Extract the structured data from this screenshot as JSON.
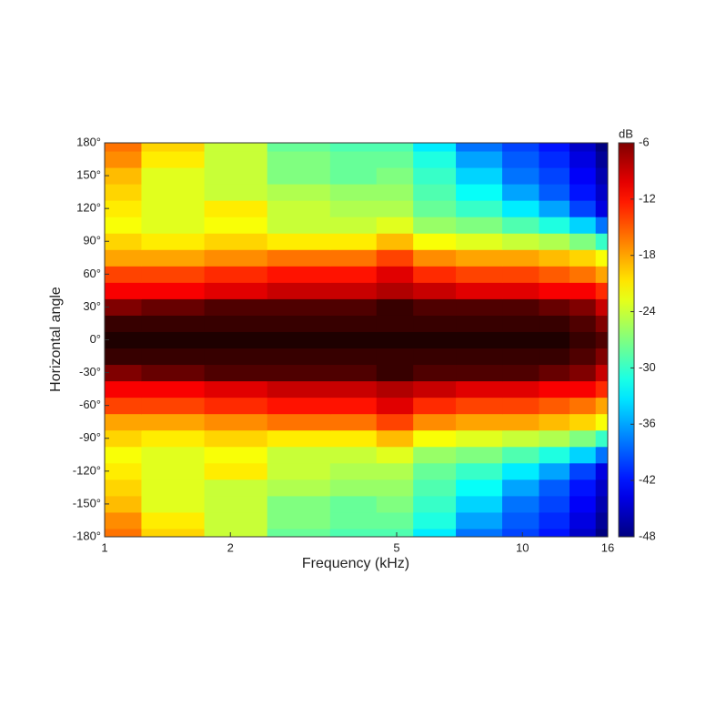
{
  "chart_data": {
    "type": "contour",
    "x_label": "Frequency (kHz)",
    "y_label": "Horizontal angle",
    "colorbar_label": "dB",
    "x_scale": "log",
    "xlim": [
      1,
      16
    ],
    "xticks": [
      1,
      2,
      5,
      10,
      16
    ],
    "ylim": [
      -180,
      180
    ],
    "yticks": [
      {
        "value": -180,
        "label": "-180°"
      },
      {
        "value": -150,
        "label": "-150°"
      },
      {
        "value": -120,
        "label": "-120°"
      },
      {
        "value": -90,
        "label": "-90°"
      },
      {
        "value": -60,
        "label": "-60°"
      },
      {
        "value": -30,
        "label": "-30°"
      },
      {
        "value": 0,
        "label": "0°"
      },
      {
        "value": 30,
        "label": "30°"
      },
      {
        "value": 60,
        "label": "60°"
      },
      {
        "value": 90,
        "label": "90°"
      },
      {
        "value": 120,
        "label": "120°"
      },
      {
        "value": 150,
        "label": "150°"
      },
      {
        "value": 180,
        "label": "180°"
      }
    ],
    "clim": [
      -48,
      -6
    ],
    "cticks": [
      -48,
      -42,
      -36,
      -30,
      -24,
      -18,
      -12,
      -6
    ],
    "colormap": "jet",
    "x": [
      1,
      1.5,
      2,
      3,
      4,
      5,
      6,
      8,
      10,
      12,
      14,
      16
    ],
    "y": [
      -180,
      -165,
      -150,
      -135,
      -120,
      -105,
      -90,
      -75,
      -60,
      -45,
      -30,
      -15,
      0,
      15,
      30,
      45,
      60,
      75,
      90,
      105,
      120,
      135,
      150,
      165,
      180
    ],
    "z": [
      [
        -16,
        -20,
        -24,
        -28,
        -29,
        -29,
        -33,
        -38,
        -40,
        -42,
        -45,
        -48
      ],
      [
        -17,
        -21,
        -24,
        -27,
        -28,
        -28,
        -31,
        -36,
        -39,
        -41,
        -44,
        -47
      ],
      [
        -19,
        -23,
        -24,
        -27,
        -28,
        -27,
        -30,
        -34,
        -38,
        -40,
        -43,
        -46
      ],
      [
        -20,
        -23,
        -24,
        -25,
        -26,
        -26,
        -29,
        -32,
        -36,
        -39,
        -42,
        -45
      ],
      [
        -21,
        -23,
        -21,
        -24,
        -25,
        -25,
        -28,
        -30,
        -33,
        -36,
        -40,
        -44
      ],
      [
        -22,
        -23,
        -22,
        -24,
        -24,
        -23,
        -26,
        -27,
        -29,
        -31,
        -34,
        -38
      ],
      [
        -20,
        -21,
        -20,
        -21,
        -21,
        -19,
        -22,
        -23,
        -24,
        -25,
        -27,
        -30
      ],
      [
        -18,
        -18,
        -17,
        -16,
        -16,
        -14,
        -17,
        -18,
        -18,
        -19,
        -20,
        -22
      ],
      [
        -14,
        -14,
        -13,
        -12,
        -12,
        -10,
        -13,
        -14,
        -14,
        -15,
        -16,
        -18
      ],
      [
        -11,
        -11,
        -10,
        -9,
        -9,
        -8,
        -9,
        -10,
        -10,
        -11,
        -11,
        -13
      ],
      [
        -6,
        -5,
        -4,
        -4,
        -4,
        -3,
        -4,
        -4,
        -4,
        -5,
        -6,
        -9
      ],
      [
        -3,
        -3,
        -3,
        -3,
        -3,
        -3,
        -3,
        -3,
        -3,
        -3,
        -4,
        -6
      ],
      [
        -2,
        -2,
        -2,
        -2,
        -2,
        -2,
        -2,
        -2,
        -2,
        -2,
        -3,
        -4
      ],
      [
        -3,
        -3,
        -3,
        -3,
        -3,
        -3,
        -3,
        -3,
        -3,
        -3,
        -4,
        -6
      ],
      [
        -6,
        -5,
        -4,
        -4,
        -4,
        -3,
        -4,
        -4,
        -4,
        -5,
        -6,
        -9
      ],
      [
        -11,
        -11,
        -10,
        -9,
        -9,
        -8,
        -9,
        -10,
        -10,
        -11,
        -11,
        -13
      ],
      [
        -14,
        -14,
        -13,
        -12,
        -12,
        -10,
        -13,
        -14,
        -14,
        -15,
        -16,
        -18
      ],
      [
        -18,
        -18,
        -17,
        -16,
        -16,
        -14,
        -17,
        -18,
        -18,
        -19,
        -20,
        -22
      ],
      [
        -20,
        -21,
        -20,
        -21,
        -21,
        -19,
        -22,
        -23,
        -24,
        -25,
        -27,
        -30
      ],
      [
        -22,
        -23,
        -22,
        -24,
        -24,
        -23,
        -26,
        -27,
        -29,
        -31,
        -34,
        -38
      ],
      [
        -21,
        -23,
        -21,
        -24,
        -25,
        -25,
        -28,
        -30,
        -33,
        -36,
        -40,
        -44
      ],
      [
        -20,
        -23,
        -24,
        -25,
        -26,
        -26,
        -29,
        -32,
        -36,
        -39,
        -42,
        -45
      ],
      [
        -19,
        -23,
        -24,
        -27,
        -28,
        -27,
        -30,
        -34,
        -38,
        -40,
        -43,
        -46
      ],
      [
        -17,
        -21,
        -24,
        -27,
        -28,
        -28,
        -31,
        -36,
        -39,
        -41,
        -44,
        -47
      ],
      [
        -16,
        -20,
        -24,
        -28,
        -29,
        -29,
        -33,
        -38,
        -40,
        -42,
        -45,
        -48
      ]
    ]
  }
}
